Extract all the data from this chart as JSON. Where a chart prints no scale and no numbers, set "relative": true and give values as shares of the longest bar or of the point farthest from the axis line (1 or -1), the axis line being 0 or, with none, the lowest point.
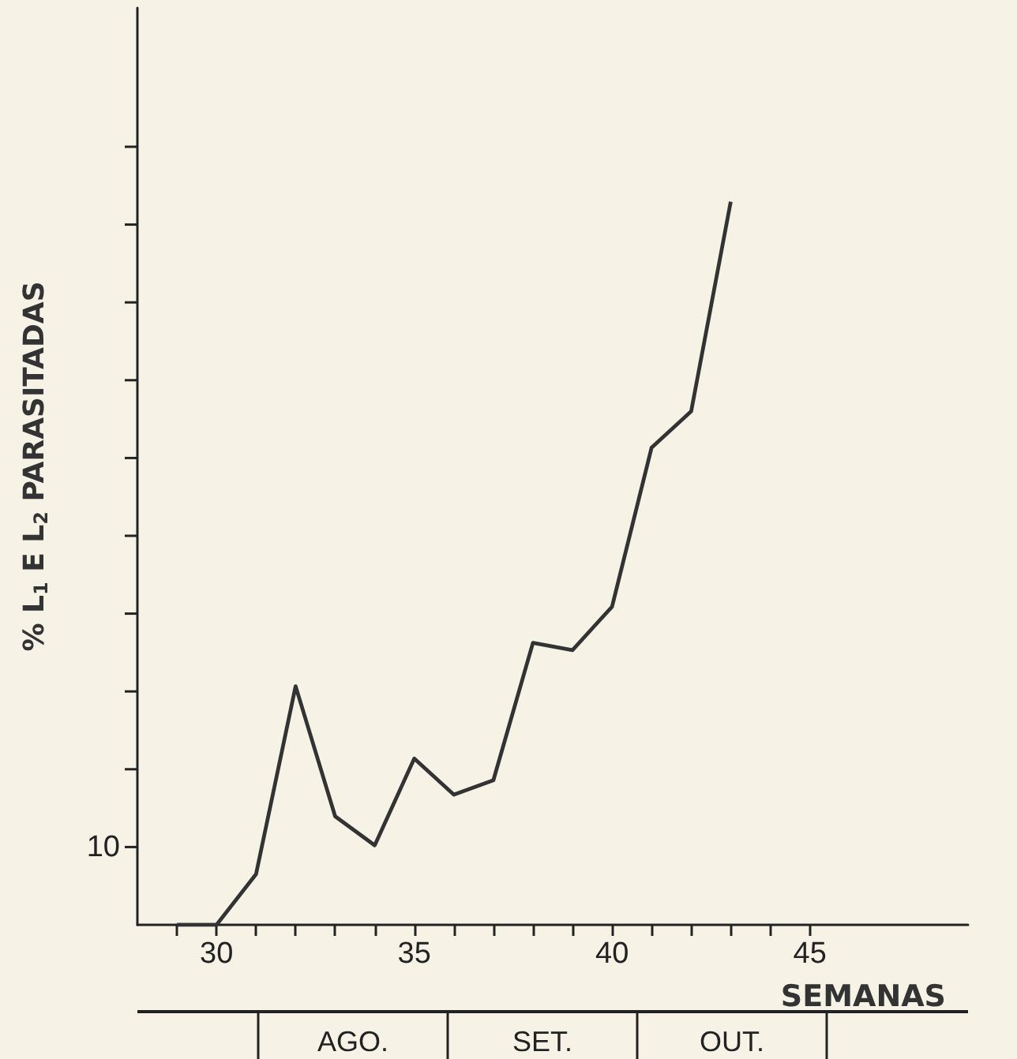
{
  "chart_data": {
    "type": "line",
    "xlabel": "SEMANAS",
    "ylabel": "% L$_{1}$ E L$_{2}$ PARASITADAS",
    "relative": true,
    "x": [
      29,
      30,
      31,
      32,
      33,
      34,
      35,
      36,
      37,
      38,
      39,
      40,
      41,
      42,
      43
    ],
    "series": [
      {
        "color": "#333333",
        "values": [
          0,
          0,
          0.07,
          0.33,
          0.15,
          0.11,
          0.23,
          0.18,
          0.2,
          0.39,
          0.38,
          0.44,
          0.66,
          0.71,
          1
        ]
      }
    ],
    "xlim": [
      28,
      49
    ],
    "xticks": [
      {
        "value": 29,
        "label": null
      },
      30,
      {
        "value": 31,
        "label": null
      },
      {
        "value": 32,
        "label": null
      },
      {
        "value": 33,
        "label": null
      },
      {
        "value": 34,
        "label": null
      },
      35,
      {
        "value": 36,
        "label": null
      },
      {
        "value": 37,
        "label": null
      },
      {
        "value": 38,
        "label": null
      },
      {
        "value": 39,
        "label": null
      },
      40,
      {
        "value": 41,
        "label": null
      },
      {
        "value": 42,
        "label": null
      },
      {
        "value": 43,
        "label": null
      },
      {
        "value": 44,
        "label": null
      },
      45
    ],
    "annotations": [
      "10",
      "AGO.",
      "SET.",
      "OUT."
    ],
    "grid": false,
    "marker": "none",
    "line_style": "solid"
  }
}
